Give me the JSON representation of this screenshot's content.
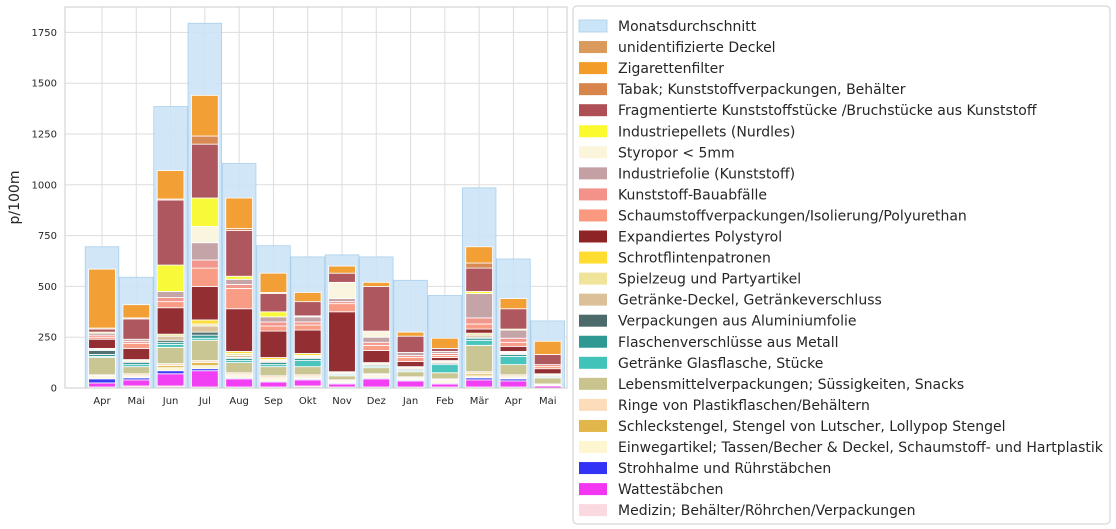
{
  "chart_data": {
    "type": "bar",
    "stacked": true,
    "ylabel": "p/100m",
    "xlabel": "",
    "title": "",
    "ylim": [
      0,
      1875
    ],
    "yticks": [
      0,
      250,
      500,
      750,
      1000,
      1250,
      1500,
      1750
    ],
    "grid": true,
    "legend_position": "right",
    "categories": [
      "Apr",
      "Mai",
      "Jun",
      "Jul",
      "Aug",
      "Sep",
      "Okt",
      "Nov",
      "Dez",
      "Jan",
      "Feb",
      "Mär",
      "Apr",
      "Mai"
    ],
    "background_series": {
      "name": "Monatsdurchschnitt",
      "color": "#cce4f7",
      "values": [
        695,
        545,
        1385,
        1795,
        1105,
        700,
        645,
        655,
        645,
        530,
        455,
        985,
        635,
        330
      ]
    },
    "series": [
      {
        "name": "unidentifizierte Deckel",
        "color": "#d99a5b",
        "values": [
          0,
          0,
          0,
          0,
          0,
          0,
          0,
          0,
          0,
          0,
          0,
          0,
          0,
          0
        ]
      },
      {
        "name": "Zigarettenfilter",
        "color": "#f39c2a",
        "values": [
          290,
          65,
          140,
          200,
          150,
          95,
          45,
          35,
          20,
          20,
          50,
          80,
          50,
          65
        ]
      },
      {
        "name": "Tabak; Kunststoffverpackungen, Behälter",
        "color": "#d8854b",
        "values": [
          5,
          5,
          5,
          40,
          10,
          5,
          0,
          0,
          0,
          0,
          0,
          25,
          0,
          0
        ]
      },
      {
        "name": "Fragmentierte Kunststoffstücke /Bruchstücke aus Kunststoff",
        "color": "#ad4f55",
        "values": [
          15,
          100,
          320,
          265,
          225,
          90,
          70,
          45,
          220,
          80,
          15,
          115,
          100,
          50
        ]
      },
      {
        "name": "Industriepellets (Nurdles)",
        "color": "#fafa2e",
        "values": [
          5,
          0,
          130,
          140,
          15,
          25,
          0,
          0,
          0,
          0,
          0,
          10,
          5,
          0
        ]
      },
      {
        "name": "Styropor < 5mm",
        "color": "#fbf5dc",
        "values": [
          0,
          0,
          0,
          80,
          0,
          0,
          5,
          80,
          30,
          0,
          0,
          0,
          0,
          0
        ]
      },
      {
        "name": "Industriefolie (Kunststoff)",
        "color": "#c4a0a3",
        "values": [
          10,
          10,
          30,
          85,
          25,
          25,
          25,
          15,
          25,
          15,
          10,
          120,
          40,
          0
        ]
      },
      {
        "name": "Kunststoff-Bauabfälle",
        "color": "#f29288",
        "values": [
          10,
          10,
          20,
          40,
          20,
          20,
          15,
          10,
          15,
          10,
          10,
          30,
          20,
          10
        ]
      },
      {
        "name": "Schaumstoffverpackungen/Isolierung/Polyurethan",
        "color": "#fb9880",
        "values": [
          10,
          25,
          30,
          90,
          100,
          25,
          25,
          40,
          25,
          20,
          10,
          25,
          20,
          10
        ]
      },
      {
        "name": "Expandiertes Polystyrol",
        "color": "#8f2427",
        "values": [
          45,
          55,
          130,
          165,
          210,
          130,
          115,
          295,
          60,
          25,
          15,
          20,
          25,
          25
        ]
      },
      {
        "name": "Schrotflintenpatronen",
        "color": "#fedc30",
        "values": [
          0,
          0,
          0,
          20,
          10,
          10,
          10,
          0,
          0,
          0,
          0,
          0,
          0,
          0
        ]
      },
      {
        "name": "Spielzeug und Partyartikel",
        "color": "#f0e49a",
        "values": [
          5,
          5,
          10,
          10,
          10,
          5,
          5,
          5,
          5,
          5,
          5,
          10,
          5,
          5
        ]
      },
      {
        "name": "Getränke-Deckel, Getränkeverschluss",
        "color": "#dbc09a",
        "values": [
          5,
          5,
          20,
          30,
          10,
          5,
          5,
          5,
          5,
          5,
          5,
          10,
          5,
          5
        ]
      },
      {
        "name": "Verpackungen aus Aluminiumfolie",
        "color": "#4b6a69",
        "values": [
          20,
          5,
          10,
          15,
          5,
          5,
          5,
          0,
          5,
          5,
          5,
          5,
          5,
          0
        ]
      },
      {
        "name": "Flaschenverschlüsse aus Metall",
        "color": "#2e9892",
        "values": [
          10,
          10,
          10,
          15,
          10,
          10,
          10,
          5,
          5,
          5,
          5,
          10,
          10,
          5
        ]
      },
      {
        "name": "Getränke Glasflasche, Stücke",
        "color": "#42c3ba",
        "values": [
          5,
          10,
          15,
          10,
          10,
          10,
          30,
          5,
          5,
          5,
          40,
          25,
          40,
          5
        ]
      },
      {
        "name": "Lebensmittelverpackungen; Süssigkeiten, Snacks",
        "color": "#c9c48e",
        "values": [
          85,
          35,
          80,
          100,
          50,
          45,
          40,
          20,
          30,
          25,
          30,
          130,
          50,
          30
        ]
      },
      {
        "name": "Ringe von Plastikflaschen/Behältern",
        "color": "#fcdcb9",
        "values": [
          5,
          10,
          10,
          10,
          10,
          10,
          10,
          5,
          5,
          5,
          5,
          10,
          10,
          5
        ]
      },
      {
        "name": "Schleckstengel, Stengel von Lutscher, Lollypop Stengel",
        "color": "#e2b64a",
        "values": [
          5,
          5,
          10,
          15,
          5,
          5,
          5,
          5,
          5,
          5,
          5,
          10,
          5,
          0
        ]
      },
      {
        "name": "Einwegartikel; Tassen/Becher & Deckel, Schaumstoff- und Hartplastik",
        "color": "#fdf6d0",
        "values": [
          10,
          5,
          15,
          15,
          10,
          10,
          5,
          5,
          10,
          5,
          10,
          10,
          5,
          5
        ]
      },
      {
        "name": "Strohhalme und Rührstäbchen",
        "color": "#3333f5",
        "values": [
          20,
          10,
          15,
          10,
          5,
          5,
          5,
          5,
          5,
          5,
          5,
          10,
          10,
          0
        ]
      },
      {
        "name": "Wattestäbchen",
        "color": "#f236f2",
        "values": [
          20,
          30,
          60,
          80,
          40,
          25,
          30,
          15,
          40,
          30,
          15,
          35,
          30,
          10
        ]
      },
      {
        "name": "Medizin; Behälter/Röhrchen/Verpackungen",
        "color": "#fad9e0",
        "values": [
          5,
          10,
          10,
          5,
          5,
          5,
          10,
          5,
          5,
          5,
          5,
          5,
          5,
          0
        ]
      }
    ]
  }
}
